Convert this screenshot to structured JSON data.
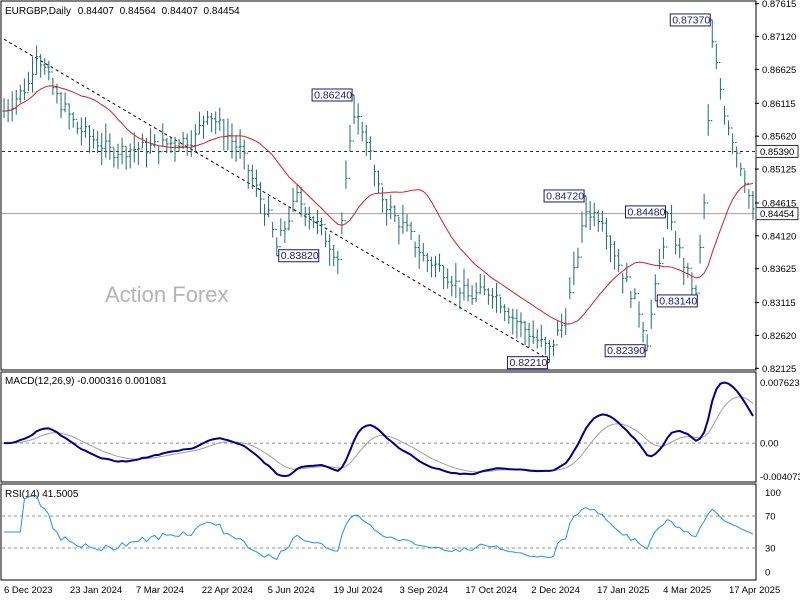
{
  "chart_data": [
    {
      "type": "candlestick",
      "title": "EURGBP,Daily",
      "ohlc": {
        "open": "0.84407",
        "high": "0.84564",
        "low": "0.84407",
        "close": "0.84454"
      },
      "watermark": "Action Forex",
      "price_ticks": [
        "0.87615",
        "0.87120",
        "0.86625",
        "0.86115",
        "0.85620",
        "0.85125",
        "0.84615",
        "0.84120",
        "0.83625",
        "0.83115",
        "0.82620",
        "0.82125"
      ],
      "price_range": [
        0.8213,
        0.8761
      ],
      "current_price_label": "0.84454",
      "current_price": 0.84454,
      "reference_line_label": "0.85390",
      "reference_line": 0.8539,
      "moving_average_color": "#d32020",
      "bar_color": "#1f6b6b",
      "annotations": [
        {
          "text": "0.87370",
          "bar": 174,
          "value": 0.8737,
          "side": "left"
        },
        {
          "text": "0.86240",
          "bar": 86,
          "value": 0.8624,
          "side": "left"
        },
        {
          "text": "0.84720",
          "bar": 143,
          "value": 0.8472,
          "side": "left"
        },
        {
          "text": "0.84480",
          "bar": 163,
          "value": 0.8448,
          "side": "left"
        },
        {
          "text": "0.83820",
          "bar": 67,
          "value": 0.8382,
          "side": "right"
        },
        {
          "text": "0.83140",
          "bar": 160,
          "value": 0.8314,
          "side": "right"
        },
        {
          "text": "0.82390",
          "bar": 158,
          "value": 0.8239,
          "side": "left"
        },
        {
          "text": "0.82210",
          "bar": 134,
          "value": 0.8221,
          "side": "left"
        }
      ],
      "trendline": {
        "from": {
          "bar": 0,
          "value": 0.8708
        },
        "to": {
          "bar": 134,
          "value": 0.8225
        },
        "style": "dashed"
      },
      "total_bars": 185
    },
    {
      "type": "line",
      "title": "MACD(12,26,9) -0.000316 0.001081",
      "y_ticks": [
        "0.007623",
        "0.00",
        "-0.004073"
      ],
      "ylim": [
        -0.004073,
        0.007623
      ],
      "macd_color": "#000080",
      "signal_color": "#a0a0a0"
    },
    {
      "type": "line",
      "title": "RSI(14) 41.5005",
      "y_ticks": [
        "100",
        "70",
        "30",
        "0"
      ],
      "ylim": [
        0,
        100
      ],
      "levels": [
        70,
        30
      ],
      "line_color": "#1e90ff"
    }
  ],
  "x_axis_labels": [
    "6 Dec 2023",
    "23 Jan 2024",
    "7 Mar 2024",
    "22 Apr 2024",
    "5 Jun 2024",
    "19 Jul 2024",
    "3 Sep 2024",
    "17 Oct 2024",
    "2 Dec 2024",
    "17 Jan 2025",
    "4 Mar 2025",
    "17 Apr 2025"
  ]
}
